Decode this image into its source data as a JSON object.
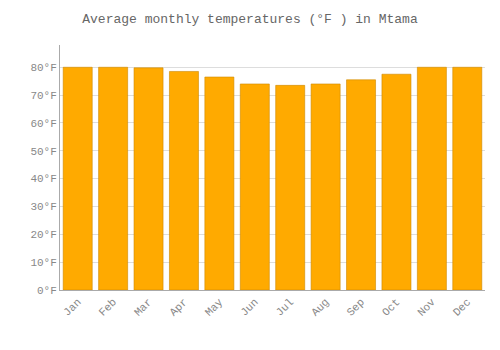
{
  "chart_data": {
    "type": "bar",
    "title": "Average monthly temperatures (°F ) in Mtama",
    "categories": [
      "Jan",
      "Feb",
      "Mar",
      "Apr",
      "May",
      "Jun",
      "Jul",
      "Aug",
      "Sep",
      "Oct",
      "Nov",
      "Dec"
    ],
    "values": [
      80.0,
      80.0,
      79.8,
      78.5,
      76.5,
      74.0,
      73.5,
      74.0,
      75.5,
      77.5,
      80.0,
      80.0
    ],
    "color": "#FFAA00",
    "ylim": [
      0,
      88
    ],
    "yticks": [
      {
        "value": 0,
        "label": "0°F"
      },
      {
        "value": 10,
        "label": "10°F"
      },
      {
        "value": 20,
        "label": "20°F"
      },
      {
        "value": 30,
        "label": "30°F"
      },
      {
        "value": 40,
        "label": "40°F"
      },
      {
        "value": 50,
        "label": "50°F"
      },
      {
        "value": 60,
        "label": "60°F"
      },
      {
        "value": 70,
        "label": "70°F"
      },
      {
        "value": 80,
        "label": "80°F"
      }
    ],
    "grid": true
  }
}
